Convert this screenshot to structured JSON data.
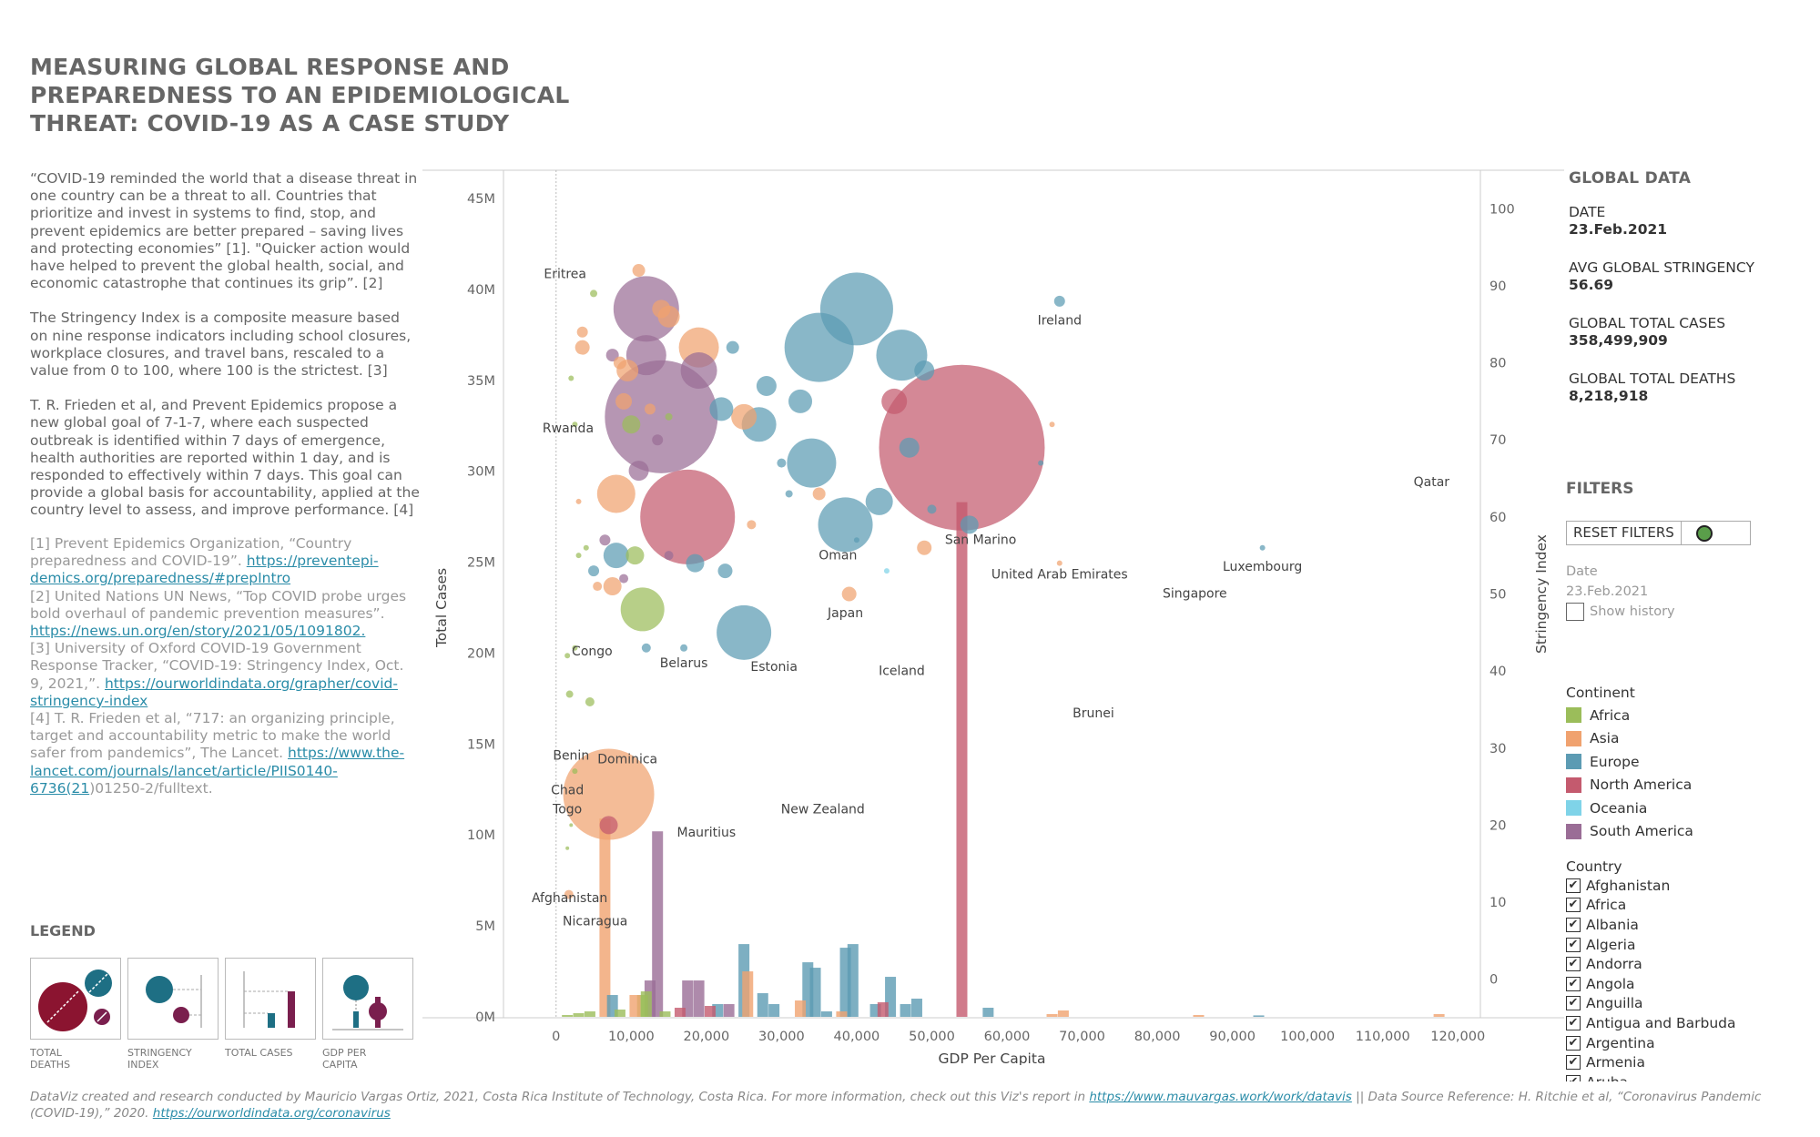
{
  "title": "MEASURING GLOBAL RESPONSE AND PREPAREDNESS TO AN EPIDEMIOLOGICAL THREAT: COVID-19 AS A CASE STUDY",
  "intro": {
    "p1": "“COVID-19 reminded the world that a disease threat in one country can be a threat to all. Countries that prioritize and invest in systems to find, stop, and prevent epidemics are better prepared – saving lives and protecting economies” [1]. \"Quicker action would have helped to prevent the global health, social, and economic catastrophe that continues its grip”. [2]",
    "p2": "The Stringency Index is a composite measure based on nine response indicators including school closures, workplace closures, and travel bans, rescaled to a value from 0 to 100, where 100 is the strictest. [3]",
    "p3": "T. R. Frieden et al, and Prevent Epidemics propose a new global goal of 7-1-7, where each suspected outbreak is identified within 7 days of emergence, health authorities are reported within 1 day, and is responded to effectively within 7 days. This goal can provide a global basis for accountability, applied at the country level to assess, and improve performance. [4]"
  },
  "refs": {
    "r1_text": "[1] Prevent Epidemics Organization, “Country preparedness and COVID-19”. ",
    "r1_link": "https://preventepi-demics.org/preparedness/#prepIntro",
    "r2_text": "[2] United Nations UN News, “Top COVID probe urges bold overhaul of pandemic prevention measures”. ",
    "r2_link": "https://news.un.org/en/story/2021/05/1091802.",
    "r3_text": "[3] University of Oxford COVID-19 Government Response Tracker, “COVID-19: Stringency Index, Oct. 9, 2021,”. ",
    "r3_link": "https://ourworldindata.org/grapher/covid-stringency-index",
    "r4_text": "[4] T. R. Frieden et al, “717: an organizing principle, target and accountability metric to make the world safer from pandemics”, The Lancet. ",
    "r4_link": "https://www.the-lancet.com/journals/lancet/article/PIIS0140-6736(21",
    "r4_tail": ")01250-2/fulltext."
  },
  "legend": {
    "title": "LEGEND",
    "cards": [
      "TOTAL DEATHS",
      "STRINGENCY INDEX",
      "TOTAL CASES",
      "GDP PER CAPITA"
    ]
  },
  "global": {
    "header": "GLOBAL DATA",
    "date_label": "DATE",
    "date_value": "23.Feb.2021",
    "stringency_label": "AVG GLOBAL STRINGENCY",
    "stringency_value": "56.69",
    "cases_label": "GLOBAL TOTAL CASES",
    "cases_value": "358,499,909",
    "deaths_label": "GLOBAL TOTAL DEATHS",
    "deaths_value": "8,218,918"
  },
  "filters": {
    "header": "FILTERS",
    "reset_label": "RESET FILTERS",
    "date_label": "Date",
    "date_value": "23.Feb.2021",
    "show_history": "Show history",
    "continent_header": "Continent",
    "continents": [
      "Africa",
      "Asia",
      "Europe",
      "North America",
      "Oceania",
      "South America"
    ],
    "continent_colors": [
      "#9bbd5a",
      "#f0a26f",
      "#5c9bb3",
      "#c45a6e",
      "#7fd3e8",
      "#9a6d96"
    ],
    "country_header": "Country",
    "countries": [
      "Afghanistan",
      "Africa",
      "Albania",
      "Algeria",
      "Andorra",
      "Angola",
      "Anguilla",
      "Antigua and Barbuda",
      "Argentina",
      "Armenia",
      "Aruba"
    ]
  },
  "footer": {
    "text": "DataViz created and research conducted by Mauricio Vargas Ortiz, 2021, Costa Rica Institute of Technology, Costa Rica. For more information, check out this Viz's report in ",
    "link1": "https://www.mauvargas.work/work/datavis",
    "mid": "  ||  Data Source Reference: H. Ritchie et al, “Coronavirus Pandemic (COVID-19),” 2020. ",
    "link2": "https://ourworldindata.org/coronavirus"
  },
  "chart_data": {
    "type": "scatter",
    "xlabel": "GDP Per Capita",
    "ylabel_left": "Total Cases",
    "ylabel_right": "Stringency Index",
    "xlim": [
      -7000,
      123000
    ],
    "x_ticks": [
      0,
      10000,
      20000,
      30000,
      40000,
      50000,
      60000,
      70000,
      80000,
      90000,
      100000,
      110000,
      120000
    ],
    "x_tick_labels": [
      "0",
      "10,000",
      "20,000",
      "30,000",
      "40,000",
      "50,000",
      "60,000",
      "70,000",
      "80,000",
      "90,000",
      "100,000",
      "110,000",
      "120,000"
    ],
    "cases_ticks": [
      0,
      5000000,
      10000000,
      15000000,
      20000000,
      25000000,
      30000000,
      35000000,
      40000000,
      45000000
    ],
    "cases_tick_labels": [
      "0M",
      "5M",
      "10M",
      "15M",
      "20M",
      "25M",
      "30M",
      "35M",
      "40M",
      "45M"
    ],
    "stringency_lim": [
      -5,
      105
    ],
    "stringency_ticks": [
      0,
      10,
      20,
      30,
      40,
      50,
      60,
      70,
      80,
      90,
      100
    ],
    "bubbles_note": "x = GDP per capita, y = stringency index, r = total deaths (relative)",
    "bubbles": [
      {
        "x": 7000,
        "y": 24,
        "r": 50,
        "c": 1
      },
      {
        "x": 17500,
        "y": 60,
        "r": 52,
        "c": 3
      },
      {
        "x": 14000,
        "y": 73,
        "r": 62,
        "c": 5
      },
      {
        "x": 12000,
        "y": 87,
        "r": 36,
        "c": 5
      },
      {
        "x": 12000,
        "y": 81,
        "r": 22,
        "c": 5
      },
      {
        "x": 19000,
        "y": 82,
        "r": 22,
        "c": 1
      },
      {
        "x": 19000,
        "y": 79,
        "r": 20,
        "c": 5
      },
      {
        "x": 54000,
        "y": 69,
        "r": 91,
        "c": 3
      },
      {
        "x": 40000,
        "y": 87,
        "r": 40,
        "c": 2
      },
      {
        "x": 35000,
        "y": 82,
        "r": 38,
        "c": 2
      },
      {
        "x": 46000,
        "y": 81,
        "r": 28,
        "c": 2
      },
      {
        "x": 34000,
        "y": 67,
        "r": 27,
        "c": 2
      },
      {
        "x": 38500,
        "y": 59,
        "r": 30,
        "c": 2
      },
      {
        "x": 25000,
        "y": 45,
        "r": 30,
        "c": 2
      },
      {
        "x": 11500,
        "y": 48,
        "r": 24,
        "c": 0
      },
      {
        "x": 27000,
        "y": 72,
        "r": 19,
        "c": 2
      },
      {
        "x": 43000,
        "y": 62,
        "r": 15,
        "c": 2
      },
      {
        "x": 45000,
        "y": 75,
        "r": 14,
        "c": 3
      },
      {
        "x": 8000,
        "y": 63,
        "r": 21,
        "c": 1
      },
      {
        "x": 8000,
        "y": 55,
        "r": 14,
        "c": 2
      },
      {
        "x": 25000,
        "y": 73,
        "r": 14,
        "c": 1
      },
      {
        "x": 22000,
        "y": 74,
        "r": 13,
        "c": 2
      },
      {
        "x": 32500,
        "y": 75,
        "r": 13,
        "c": 2
      },
      {
        "x": 49000,
        "y": 79,
        "r": 11,
        "c": 2
      },
      {
        "x": 47000,
        "y": 69,
        "r": 11,
        "c": 2
      },
      {
        "x": 28000,
        "y": 77,
        "r": 11,
        "c": 2
      },
      {
        "x": 15000,
        "y": 86,
        "r": 12,
        "c": 1
      },
      {
        "x": 9500,
        "y": 79,
        "r": 12,
        "c": 1
      },
      {
        "x": 10000,
        "y": 72,
        "r": 10,
        "c": 0
      },
      {
        "x": 14000,
        "y": 87,
        "r": 10,
        "c": 1
      },
      {
        "x": 11000,
        "y": 66,
        "r": 11,
        "c": 5
      },
      {
        "x": 7500,
        "y": 51,
        "r": 10,
        "c": 1
      },
      {
        "x": 10500,
        "y": 55,
        "r": 10,
        "c": 0
      },
      {
        "x": 18500,
        "y": 54,
        "r": 10,
        "c": 2
      },
      {
        "x": 55000,
        "y": 59,
        "r": 10,
        "c": 2
      },
      {
        "x": 9000,
        "y": 75,
        "r": 9,
        "c": 1
      },
      {
        "x": 22500,
        "y": 53,
        "r": 8,
        "c": 2
      },
      {
        "x": 39000,
        "y": 50,
        "r": 8,
        "c": 1
      },
      {
        "x": 49000,
        "y": 56,
        "r": 8,
        "c": 1
      },
      {
        "x": 7000,
        "y": 20,
        "r": 10,
        "c": 3
      },
      {
        "x": 11000,
        "y": 92,
        "r": 7,
        "c": 1
      },
      {
        "x": 67000,
        "y": 88,
        "r": 6,
        "c": 2
      },
      {
        "x": 3500,
        "y": 82,
        "r": 8,
        "c": 1
      },
      {
        "x": 7500,
        "y": 81,
        "r": 7,
        "c": 5
      },
      {
        "x": 8500,
        "y": 80,
        "r": 7,
        "c": 1
      },
      {
        "x": 12500,
        "y": 74,
        "r": 6,
        "c": 1
      },
      {
        "x": 3500,
        "y": 84,
        "r": 6,
        "c": 1
      },
      {
        "x": 13500,
        "y": 70,
        "r": 6,
        "c": 5
      },
      {
        "x": 23500,
        "y": 82,
        "r": 7,
        "c": 2
      },
      {
        "x": 26000,
        "y": 59,
        "r": 5,
        "c": 1
      },
      {
        "x": 35000,
        "y": 63,
        "r": 7,
        "c": 1
      },
      {
        "x": 50000,
        "y": 61,
        "r": 5,
        "c": 2
      },
      {
        "x": 5000,
        "y": 53,
        "r": 6,
        "c": 2
      },
      {
        "x": 6500,
        "y": 57,
        "r": 6,
        "c": 5
      },
      {
        "x": 5500,
        "y": 51,
        "r": 5,
        "c": 1
      },
      {
        "x": 12000,
        "y": 43,
        "r": 5,
        "c": 2
      },
      {
        "x": 17000,
        "y": 43,
        "r": 4,
        "c": 2
      },
      {
        "x": 15000,
        "y": 55,
        "r": 5,
        "c": 5
      },
      {
        "x": 4500,
        "y": 36,
        "r": 5,
        "c": 0
      },
      {
        "x": 5000,
        "y": 89,
        "r": 4,
        "c": 0
      },
      {
        "x": 1700,
        "y": 11,
        "r": 5,
        "c": 1
      },
      {
        "x": 9000,
        "y": 52,
        "r": 5,
        "c": 5
      },
      {
        "x": 30000,
        "y": 67,
        "r": 5,
        "c": 2
      },
      {
        "x": 64500,
        "y": 67,
        "r": 3,
        "c": 2
      },
      {
        "x": 66000,
        "y": 72,
        "r": 3,
        "c": 1
      },
      {
        "x": 44000,
        "y": 53,
        "r": 3,
        "c": 4
      },
      {
        "x": 67000,
        "y": 54,
        "r": 3,
        "c": 1
      },
      {
        "x": 94000,
        "y": 56,
        "r": 3,
        "c": 2
      },
      {
        "x": 3000,
        "y": 55,
        "r": 3,
        "c": 0
      },
      {
        "x": 2500,
        "y": 27,
        "r": 3,
        "c": 0
      },
      {
        "x": 1800,
        "y": 37,
        "r": 4,
        "c": 0
      },
      {
        "x": 1500,
        "y": 42,
        "r": 3,
        "c": 0
      },
      {
        "x": 2500,
        "y": 72,
        "r": 3,
        "c": 0
      },
      {
        "x": 2000,
        "y": 78,
        "r": 3,
        "c": 0
      },
      {
        "x": 3000,
        "y": 62,
        "r": 3,
        "c": 1
      },
      {
        "x": 4000,
        "y": 56,
        "r": 3,
        "c": 0
      },
      {
        "x": 1500,
        "y": 17,
        "r": 2,
        "c": 0
      },
      {
        "x": 2000,
        "y": 20,
        "r": 2,
        "c": 0
      },
      {
        "x": 2500,
        "y": 43,
        "r": 3,
        "c": 0
      },
      {
        "x": 31000,
        "y": 63,
        "r": 4,
        "c": 2
      },
      {
        "x": 40000,
        "y": 57,
        "r": 3,
        "c": 2
      },
      {
        "x": 15000,
        "y": 73,
        "r": 4,
        "c": 0
      }
    ],
    "bars_note": "x = GDP per capita, value = total cases",
    "bars": [
      {
        "x": 6500,
        "v": 10900000,
        "c": 1
      },
      {
        "x": 13500,
        "v": 10200000,
        "c": 5
      },
      {
        "x": 54000,
        "v": 28300000,
        "c": 3
      },
      {
        "x": 25000,
        "v": 4000000,
        "c": 2
      },
      {
        "x": 33500,
        "v": 3000000,
        "c": 2
      },
      {
        "x": 34500,
        "v": 2700000,
        "c": 2
      },
      {
        "x": 38500,
        "v": 3800000,
        "c": 2
      },
      {
        "x": 39500,
        "v": 4000000,
        "c": 2
      },
      {
        "x": 44500,
        "v": 2200000,
        "c": 2
      },
      {
        "x": 48000,
        "v": 1000000,
        "c": 2
      },
      {
        "x": 25500,
        "v": 2500000,
        "c": 1
      },
      {
        "x": 12500,
        "v": 2000000,
        "c": 5
      },
      {
        "x": 17500,
        "v": 2000000,
        "c": 5
      },
      {
        "x": 19000,
        "v": 2000000,
        "c": 5
      },
      {
        "x": 11500,
        "v": 1200000,
        "c": 0
      },
      {
        "x": 12000,
        "v": 1400000,
        "c": 0
      },
      {
        "x": 7500,
        "v": 1200000,
        "c": 2
      },
      {
        "x": 10500,
        "v": 1200000,
        "c": 1
      },
      {
        "x": 27500,
        "v": 1300000,
        "c": 2
      },
      {
        "x": 29000,
        "v": 700000,
        "c": 2
      },
      {
        "x": 32500,
        "v": 900000,
        "c": 1
      },
      {
        "x": 21500,
        "v": 700000,
        "c": 2
      },
      {
        "x": 23000,
        "v": 700000,
        "c": 5
      },
      {
        "x": 42500,
        "v": 700000,
        "c": 2
      },
      {
        "x": 43500,
        "v": 800000,
        "c": 3
      },
      {
        "x": 46500,
        "v": 700000,
        "c": 2
      },
      {
        "x": 57500,
        "v": 500000,
        "c": 2
      },
      {
        "x": 20500,
        "v": 600000,
        "c": 3
      },
      {
        "x": 16500,
        "v": 500000,
        "c": 3
      },
      {
        "x": 4500,
        "v": 300000,
        "c": 0
      },
      {
        "x": 8500,
        "v": 400000,
        "c": 0
      },
      {
        "x": 14500,
        "v": 300000,
        "c": 0
      },
      {
        "x": 36000,
        "v": 300000,
        "c": 2
      },
      {
        "x": 38000,
        "v": 300000,
        "c": 1
      },
      {
        "x": 67500,
        "v": 350000,
        "c": 1
      },
      {
        "x": 66000,
        "v": 150000,
        "c": 1
      },
      {
        "x": 85500,
        "v": 100000,
        "c": 1
      },
      {
        "x": 93500,
        "v": 80000,
        "c": 2
      },
      {
        "x": 117500,
        "v": 150000,
        "c": 1
      },
      {
        "x": 1500,
        "v": 100000,
        "c": 0
      },
      {
        "x": 3000,
        "v": 200000,
        "c": 0
      }
    ],
    "labels": [
      {
        "text": "Eritrea",
        "x": 1200,
        "y": 91
      },
      {
        "text": "Rwanda",
        "x": 1600,
        "y": 71
      },
      {
        "text": "Ireland",
        "x": 67000,
        "y": 85
      },
      {
        "text": "Qatar",
        "x": 116500,
        "y": 64
      },
      {
        "text": "San Marino",
        "x": 56500,
        "y": 56.5
      },
      {
        "text": "Oman",
        "x": 37500,
        "y": 54.5
      },
      {
        "text": "United Arab Emirates",
        "x": 67000,
        "y": 52
      },
      {
        "text": "Luxembourg",
        "x": 94000,
        "y": 53
      },
      {
        "text": "Singapore",
        "x": 85000,
        "y": 49.5
      },
      {
        "text": "Japan",
        "x": 38500,
        "y": 47
      },
      {
        "text": "Congo",
        "x": 4800,
        "y": 42
      },
      {
        "text": "Belarus",
        "x": 17000,
        "y": 40.5
      },
      {
        "text": "Estonia",
        "x": 29000,
        "y": 40
      },
      {
        "text": "Iceland",
        "x": 46000,
        "y": 39.5
      },
      {
        "text": "Brunei",
        "x": 71500,
        "y": 34
      },
      {
        "text": "Benin",
        "x": 2000,
        "y": 28.5
      },
      {
        "text": "Dominica",
        "x": 9500,
        "y": 28
      },
      {
        "text": "Chad",
        "x": 1500,
        "y": 24
      },
      {
        "text": "Togo",
        "x": 1500,
        "y": 21.5
      },
      {
        "text": "New Zealand",
        "x": 35500,
        "y": 21.5
      },
      {
        "text": "Mauritius",
        "x": 20000,
        "y": 18.5
      },
      {
        "text": "Afghanistan",
        "x": 1800,
        "y": 10
      },
      {
        "text": "Nicaragua",
        "x": 5200,
        "y": 7
      }
    ]
  }
}
